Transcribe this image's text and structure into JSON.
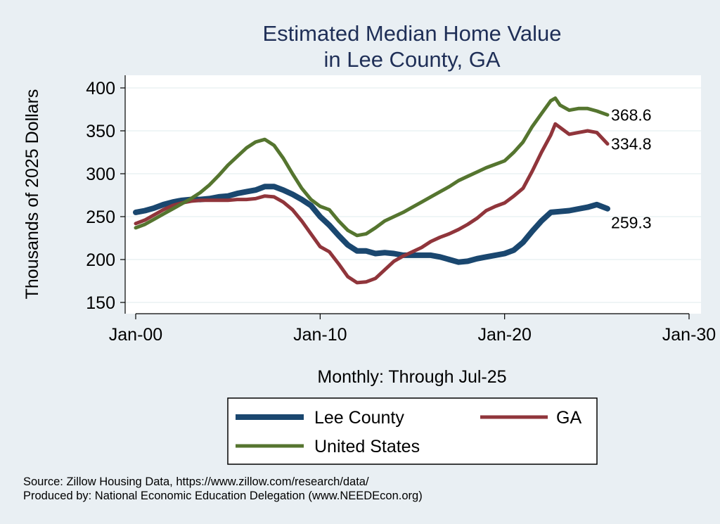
{
  "chart_data": {
    "type": "line",
    "title": [
      "Estimated Median Home Value",
      "in Lee County, GA"
    ],
    "xlabel": "Monthly: Through Jul-25",
    "ylabel": "Thousands of 2025 Dollars",
    "x_range": [
      2000.0,
      2030.0
    ],
    "ylim": [
      142,
      410
    ],
    "y_ticks": [
      150,
      200,
      250,
      300,
      350,
      400
    ],
    "x_ticks": [
      {
        "value": 2000.0,
        "label": "Jan-00"
      },
      {
        "value": 2010.0,
        "label": "Jan-10"
      },
      {
        "value": 2020.0,
        "label": "Jan-20"
      },
      {
        "value": 2030.0,
        "label": "Jan-30"
      }
    ],
    "grid": "horizontal",
    "legend_position": "bottom",
    "series": [
      {
        "name": "Lee County",
        "color": "#1a476f",
        "line_width": 8,
        "end_label": "259.3",
        "points": [
          [
            2000.0,
            255
          ],
          [
            2000.5,
            257
          ],
          [
            2001.0,
            260
          ],
          [
            2001.5,
            264
          ],
          [
            2002.0,
            267
          ],
          [
            2002.5,
            269
          ],
          [
            2003.0,
            270
          ],
          [
            2003.5,
            270
          ],
          [
            2004.0,
            271
          ],
          [
            2004.5,
            273
          ],
          [
            2005.0,
            274
          ],
          [
            2005.5,
            277
          ],
          [
            2006.0,
            279
          ],
          [
            2006.5,
            281
          ],
          [
            2007.0,
            285
          ],
          [
            2007.5,
            285
          ],
          [
            2008.0,
            281
          ],
          [
            2008.5,
            276
          ],
          [
            2009.0,
            270
          ],
          [
            2009.5,
            263
          ],
          [
            2010.0,
            250
          ],
          [
            2010.5,
            240
          ],
          [
            2011.0,
            228
          ],
          [
            2011.5,
            217
          ],
          [
            2012.0,
            210
          ],
          [
            2012.5,
            210
          ],
          [
            2013.0,
            207
          ],
          [
            2013.5,
            208
          ],
          [
            2014.0,
            207
          ],
          [
            2014.5,
            205
          ],
          [
            2015.0,
            205
          ],
          [
            2015.5,
            205
          ],
          [
            2016.0,
            205
          ],
          [
            2016.5,
            203
          ],
          [
            2017.0,
            200
          ],
          [
            2017.5,
            197
          ],
          [
            2018.0,
            198
          ],
          [
            2018.5,
            201
          ],
          [
            2019.0,
            203
          ],
          [
            2019.5,
            205
          ],
          [
            2020.0,
            207
          ],
          [
            2020.5,
            211
          ],
          [
            2021.0,
            220
          ],
          [
            2021.5,
            233
          ],
          [
            2022.0,
            245
          ],
          [
            2022.5,
            255
          ],
          [
            2023.0,
            256
          ],
          [
            2023.5,
            257
          ],
          [
            2024.0,
            259
          ],
          [
            2024.5,
            261
          ],
          [
            2025.0,
            264
          ],
          [
            2025.58,
            259.3
          ]
        ]
      },
      {
        "name": "GA",
        "color": "#90353b",
        "line_width": 5,
        "end_label": "334.8",
        "points": [
          [
            2000.0,
            242
          ],
          [
            2000.5,
            246
          ],
          [
            2001.0,
            252
          ],
          [
            2001.5,
            258
          ],
          [
            2002.0,
            263
          ],
          [
            2002.5,
            266
          ],
          [
            2003.0,
            268
          ],
          [
            2003.5,
            269
          ],
          [
            2004.0,
            269
          ],
          [
            2004.5,
            269
          ],
          [
            2005.0,
            269
          ],
          [
            2005.5,
            270
          ],
          [
            2006.0,
            270
          ],
          [
            2006.5,
            271
          ],
          [
            2007.0,
            274
          ],
          [
            2007.5,
            273
          ],
          [
            2008.0,
            267
          ],
          [
            2008.5,
            258
          ],
          [
            2009.0,
            245
          ],
          [
            2009.5,
            230
          ],
          [
            2010.0,
            215
          ],
          [
            2010.5,
            209
          ],
          [
            2011.0,
            195
          ],
          [
            2011.5,
            180
          ],
          [
            2012.0,
            173
          ],
          [
            2012.5,
            174
          ],
          [
            2013.0,
            178
          ],
          [
            2013.5,
            188
          ],
          [
            2014.0,
            198
          ],
          [
            2014.5,
            204
          ],
          [
            2015.0,
            209
          ],
          [
            2015.5,
            214
          ],
          [
            2016.0,
            221
          ],
          [
            2016.5,
            226
          ],
          [
            2017.0,
            230
          ],
          [
            2017.5,
            235
          ],
          [
            2018.0,
            241
          ],
          [
            2018.5,
            248
          ],
          [
            2019.0,
            257
          ],
          [
            2019.5,
            262
          ],
          [
            2020.0,
            266
          ],
          [
            2020.5,
            274
          ],
          [
            2021.0,
            283
          ],
          [
            2021.5,
            303
          ],
          [
            2022.0,
            325
          ],
          [
            2022.5,
            345
          ],
          [
            2022.75,
            358
          ],
          [
            2023.0,
            354
          ],
          [
            2023.5,
            346
          ],
          [
            2024.0,
            348
          ],
          [
            2024.5,
            350
          ],
          [
            2025.0,
            348
          ],
          [
            2025.58,
            334.8
          ]
        ]
      },
      {
        "name": "United States",
        "color": "#55752f",
        "line_width": 5,
        "end_label": "368.6",
        "points": [
          [
            2000.0,
            237
          ],
          [
            2000.5,
            241
          ],
          [
            2001.0,
            247
          ],
          [
            2001.5,
            253
          ],
          [
            2002.0,
            259
          ],
          [
            2002.5,
            265
          ],
          [
            2003.0,
            271
          ],
          [
            2003.5,
            278
          ],
          [
            2004.0,
            287
          ],
          [
            2004.5,
            298
          ],
          [
            2005.0,
            310
          ],
          [
            2005.5,
            320
          ],
          [
            2006.0,
            330
          ],
          [
            2006.5,
            337
          ],
          [
            2007.0,
            340
          ],
          [
            2007.5,
            333
          ],
          [
            2008.0,
            318
          ],
          [
            2008.5,
            300
          ],
          [
            2009.0,
            283
          ],
          [
            2009.5,
            270
          ],
          [
            2010.0,
            262
          ],
          [
            2010.5,
            258
          ],
          [
            2011.0,
            245
          ],
          [
            2011.5,
            234
          ],
          [
            2012.0,
            228
          ],
          [
            2012.5,
            230
          ],
          [
            2013.0,
            237
          ],
          [
            2013.5,
            245
          ],
          [
            2014.0,
            250
          ],
          [
            2014.5,
            255
          ],
          [
            2015.0,
            261
          ],
          [
            2015.5,
            267
          ],
          [
            2016.0,
            273
          ],
          [
            2016.5,
            279
          ],
          [
            2017.0,
            285
          ],
          [
            2017.5,
            292
          ],
          [
            2018.0,
            297
          ],
          [
            2018.5,
            302
          ],
          [
            2019.0,
            307
          ],
          [
            2019.5,
            311
          ],
          [
            2020.0,
            315
          ],
          [
            2020.5,
            325
          ],
          [
            2021.0,
            337
          ],
          [
            2021.5,
            355
          ],
          [
            2022.0,
            370
          ],
          [
            2022.5,
            385
          ],
          [
            2022.75,
            388
          ],
          [
            2023.0,
            380
          ],
          [
            2023.5,
            374
          ],
          [
            2024.0,
            376
          ],
          [
            2024.5,
            376
          ],
          [
            2025.0,
            373
          ],
          [
            2025.58,
            368.6
          ]
        ]
      }
    ],
    "legend": [
      {
        "label": "Lee County",
        "series": 0
      },
      {
        "label": "GA",
        "series": 1
      },
      {
        "label": "United States",
        "series": 2
      }
    ],
    "notes": [
      "Source: Zillow Housing Data, https://www.zillow.com/research/data/",
      "Produced by: National Economic Education Delegation (www.NEEDEcon.org)"
    ]
  }
}
